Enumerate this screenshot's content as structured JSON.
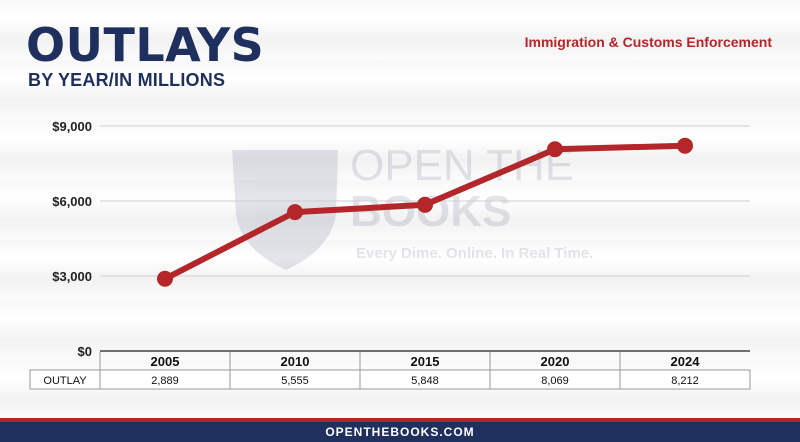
{
  "header": {
    "title": "OUTLAYS",
    "subtitle": "BY YEAR/IN MILLIONS",
    "agency": "Immigration & Customs Enforcement"
  },
  "watermark": {
    "line1": "OPEN THE",
    "line2": "BOOKS",
    "tagline": "Every Dime. Online. In Real Time."
  },
  "footer": {
    "url": "OPENTHEBOOKS.COM"
  },
  "colors": {
    "line": "#b3262a",
    "navy": "#1f2f5e"
  },
  "chart_data": {
    "type": "line",
    "categories": [
      "2005",
      "2010",
      "2015",
      "2020",
      "2024"
    ],
    "values": [
      2889,
      5555,
      5848,
      8069,
      8212
    ],
    "ylim": [
      0,
      9000
    ],
    "yticks": [
      0,
      3000,
      6000,
      9000
    ],
    "ytick_labels": [
      "$0",
      "$3,000",
      "$6,000",
      "$9,000"
    ],
    "grid": true,
    "table": {
      "row_label": "OUTLAY",
      "values": [
        "2,889",
        "5,555",
        "5,848",
        "8,069",
        "8,212"
      ]
    }
  }
}
